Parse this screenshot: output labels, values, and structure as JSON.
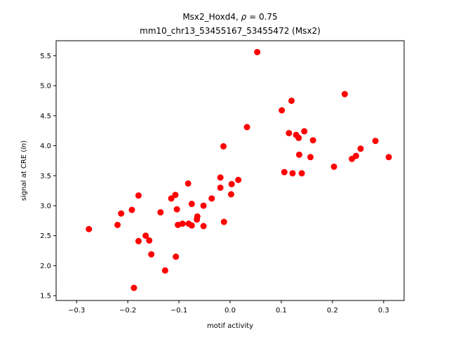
{
  "chart_data": {
    "type": "scatter",
    "title_prefix": "Msx2_Hoxd4, ",
    "title_rho_symbol": "ρ",
    "title_rho_value": " = 0.75",
    "subtitle": "mm10_chr13_53455167_53455472 (Msx2)",
    "xlabel": "motif activity",
    "ylabel_prefix": "signal at CRE (",
    "ylabel_italic": "ln",
    "ylabel_suffix": ")",
    "xlim": [
      -0.34,
      0.34
    ],
    "ylim": [
      1.42,
      5.75
    ],
    "xticks": [
      -0.3,
      -0.2,
      -0.1,
      0.0,
      0.1,
      0.2,
      0.3
    ],
    "xtick_labels": [
      "−0.3",
      "−0.2",
      "−0.1",
      "0.0",
      "0.1",
      "0.2",
      "0.3"
    ],
    "yticks": [
      1.5,
      2.0,
      2.5,
      3.0,
      3.5,
      4.0,
      4.5,
      5.0,
      5.5
    ],
    "ytick_labels": [
      "1.5",
      "2.0",
      "2.5",
      "3.0",
      "3.5",
      "4.0",
      "4.5",
      "5.0",
      "5.5"
    ],
    "grid": false,
    "marker_color": "#ff0000",
    "points": [
      {
        "x": -0.276,
        "y": 2.61
      },
      {
        "x": -0.22,
        "y": 2.68
      },
      {
        "x": -0.213,
        "y": 2.87
      },
      {
        "x": -0.192,
        "y": 2.93
      },
      {
        "x": -0.188,
        "y": 1.63
      },
      {
        "x": -0.179,
        "y": 3.17
      },
      {
        "x": -0.179,
        "y": 2.41
      },
      {
        "x": -0.165,
        "y": 2.5
      },
      {
        "x": -0.158,
        "y": 2.42
      },
      {
        "x": -0.154,
        "y": 2.19
      },
      {
        "x": -0.136,
        "y": 2.89
      },
      {
        "x": -0.127,
        "y": 1.92
      },
      {
        "x": -0.115,
        "y": 3.12
      },
      {
        "x": -0.107,
        "y": 3.18
      },
      {
        "x": -0.106,
        "y": 2.15
      },
      {
        "x": -0.104,
        "y": 2.94
      },
      {
        "x": -0.102,
        "y": 2.68
      },
      {
        "x": -0.093,
        "y": 2.7
      },
      {
        "x": -0.082,
        "y": 3.37
      },
      {
        "x": -0.081,
        "y": 2.7
      },
      {
        "x": -0.075,
        "y": 3.03
      },
      {
        "x": -0.075,
        "y": 2.67
      },
      {
        "x": -0.065,
        "y": 2.77
      },
      {
        "x": -0.064,
        "y": 2.82
      },
      {
        "x": -0.052,
        "y": 3.0
      },
      {
        "x": -0.052,
        "y": 2.66
      },
      {
        "x": -0.036,
        "y": 3.12
      },
      {
        "x": -0.019,
        "y": 3.47
      },
      {
        "x": -0.019,
        "y": 3.3
      },
      {
        "x": -0.013,
        "y": 3.99
      },
      {
        "x": -0.012,
        "y": 2.73
      },
      {
        "x": 0.002,
        "y": 3.19
      },
      {
        "x": 0.003,
        "y": 3.36
      },
      {
        "x": 0.016,
        "y": 3.43
      },
      {
        "x": 0.033,
        "y": 4.31
      },
      {
        "x": 0.053,
        "y": 5.56
      },
      {
        "x": 0.101,
        "y": 4.59
      },
      {
        "x": 0.106,
        "y": 3.56
      },
      {
        "x": 0.115,
        "y": 4.21
      },
      {
        "x": 0.12,
        "y": 4.75
      },
      {
        "x": 0.122,
        "y": 3.54
      },
      {
        "x": 0.129,
        "y": 4.18
      },
      {
        "x": 0.134,
        "y": 4.13
      },
      {
        "x": 0.135,
        "y": 3.85
      },
      {
        "x": 0.14,
        "y": 3.54
      },
      {
        "x": 0.145,
        "y": 4.24
      },
      {
        "x": 0.157,
        "y": 3.81
      },
      {
        "x": 0.162,
        "y": 4.09
      },
      {
        "x": 0.203,
        "y": 3.65
      },
      {
        "x": 0.224,
        "y": 4.86
      },
      {
        "x": 0.238,
        "y": 3.78
      },
      {
        "x": 0.246,
        "y": 3.83
      },
      {
        "x": 0.255,
        "y": 3.95
      },
      {
        "x": 0.284,
        "y": 4.08
      },
      {
        "x": 0.31,
        "y": 3.81
      }
    ]
  }
}
